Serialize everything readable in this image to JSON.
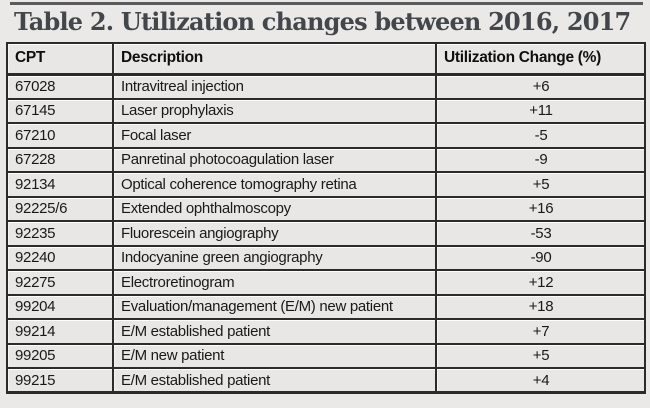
{
  "page_title": "Table 2. Utilization changes between 2016, 2017",
  "chart_data": {
    "type": "table",
    "title": "Table 2. Utilization changes between 2016, 2017",
    "columns": [
      "CPT",
      "Description",
      "Utilization Change (%)"
    ],
    "rows": [
      {
        "cpt": "67028",
        "description": "Intravitreal injection",
        "change": "+6"
      },
      {
        "cpt": "67145",
        "description": "Laser prophylaxis",
        "change": "+11"
      },
      {
        "cpt": "67210",
        "description": "Focal laser",
        "change": "-5"
      },
      {
        "cpt": "67228",
        "description": "Panretinal photocoagulation laser",
        "change": "-9"
      },
      {
        "cpt": "92134",
        "description": "Optical coherence tomography retina",
        "change": "+5"
      },
      {
        "cpt": "92225/6",
        "description": "Extended ophthalmoscopy",
        "change": "+16"
      },
      {
        "cpt": "92235",
        "description": "Fluorescein angiography",
        "change": "-53"
      },
      {
        "cpt": "92240",
        "description": "Indocyanine green angiography",
        "change": "-90"
      },
      {
        "cpt": "92275",
        "description": "Electroretinogram",
        "change": "+12"
      },
      {
        "cpt": "99204",
        "description": "Evaluation/management (E/M) new patient",
        "change": "+18"
      },
      {
        "cpt": "99214",
        "description": "E/M established patient",
        "change": "+7"
      },
      {
        "cpt": "99205",
        "description": "E/M new patient",
        "change": "+5"
      },
      {
        "cpt": "99215",
        "description": "E/M established patient",
        "change": "+4"
      }
    ],
    "layout": {
      "change_values_centered": true,
      "grid": true,
      "legend": "none"
    }
  },
  "colors": {
    "page_background": "#eae9e7",
    "row_background": "#e8e7e5",
    "border": "#2b2b2b",
    "title_text": "#43474b",
    "body_text": "#191919",
    "top_rule": "#595b5d"
  }
}
